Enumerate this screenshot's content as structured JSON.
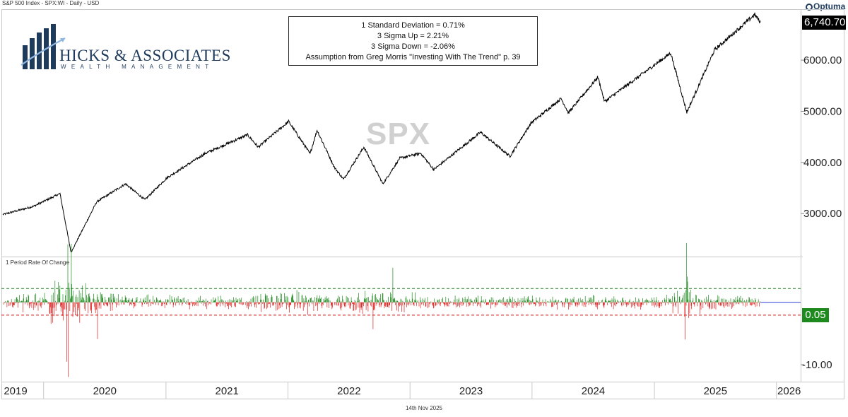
{
  "header": {
    "title": "S&P 500 Index - SPX:WI - Daily - USD"
  },
  "branding": {
    "logo_name": "HICKS & ASSOCIATES",
    "logo_tagline": "WEALTH MANAGEMENT",
    "vendor": "Optuma",
    "watermark": "SPX"
  },
  "annotation": {
    "lines": [
      "1 Standard Deviation = 0.71%",
      "3 Sigma Up = 2.21%",
      "3 Sigma Down = -2.06%",
      "Assumption from Greg Morris \"Investing With The Trend\" p. 39"
    ]
  },
  "footer": {
    "date": "14th Nov 2025"
  },
  "chart_data": [
    {
      "type": "line",
      "title": "S&P 500 Index - SPX:WI - Daily - USD",
      "series": [
        {
          "x": [
            "2019-09-01",
            "2019-12-01",
            "2020-02-19",
            "2020-03-23",
            "2020-06-08",
            "2020-09-02",
            "2020-10-30",
            "2021-01-04",
            "2021-04-30",
            "2021-09-02",
            "2021-10-04",
            "2022-01-03",
            "2022-03-08",
            "2022-03-29",
            "2022-05-20",
            "2022-06-16",
            "2022-08-16",
            "2022-10-12",
            "2022-12-01",
            "2023-02-02",
            "2023-03-13",
            "2023-07-31",
            "2023-10-27",
            "2023-12-29",
            "2024-03-28",
            "2024-04-19",
            "2024-07-16",
            "2024-08-05",
            "2025-02-19",
            "2025-04-08",
            "2025-06-30",
            "2025-10-28",
            "2025-11-14"
          ],
          "values": [
            2980,
            3140,
            3390,
            2240,
            3230,
            3580,
            3270,
            3700,
            4180,
            4540,
            4300,
            4800,
            4170,
            4630,
            3900,
            3670,
            4300,
            3580,
            4080,
            4180,
            3860,
            4590,
            4120,
            4770,
            5250,
            4970,
            5670,
            5190,
            6140,
            4980,
            6200,
            6890,
            6740.7
          ]
        }
      ],
      "ylim": [
        2200,
        6900
      ],
      "yticks": [
        "3000.00",
        "4000.00",
        "5000.00",
        "6000.00"
      ],
      "last_value_label": "6,740.70",
      "xticks": [
        "2019",
        "2020",
        "2021",
        "2022",
        "2023",
        "2024",
        "2025",
        "2026"
      ]
    },
    {
      "type": "bar",
      "title": "1 Period Rate Of Change",
      "x_range": [
        "2019-09-01",
        "2025-11-14"
      ],
      "ylim": [
        -12.5,
        7
      ],
      "yticks": [
        "-10.00"
      ],
      "last_value_label": "0.05",
      "reference_lines": {
        "upper": 2.21,
        "lower": -2.06,
        "zero": 0
      },
      "extremes": [
        {
          "x": "2020-03-16",
          "value": -11.98
        },
        {
          "x": "2020-03-24",
          "value": 9.38
        },
        {
          "x": "2020-03-12",
          "value": -9.51
        },
        {
          "x": "2020-03-13",
          "value": 9.29
        },
        {
          "x": "2020-06-11",
          "value": -5.89
        },
        {
          "x": "2022-09-13",
          "value": -4.32
        },
        {
          "x": "2022-11-10",
          "value": 5.54
        },
        {
          "x": "2025-04-04",
          "value": -5.97
        },
        {
          "x": "2025-04-09",
          "value": 9.52
        }
      ],
      "colors": {
        "positive": "#1e8a1e",
        "negative": "#e01b1b",
        "upper_line": "#1e7a1e",
        "lower_line": "#d01010",
        "zero_line": "#2b3fd6"
      }
    }
  ]
}
